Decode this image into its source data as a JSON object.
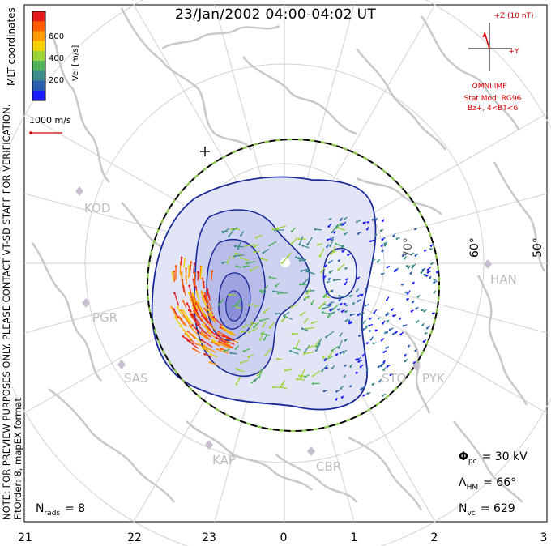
{
  "title": "23/Jan/2002 04:00-04:02 UT",
  "coord_label": "MLT coordinates",
  "preview_note_1": "NOTE: FOR PREVIEW PURPOSES ONLY. PLEASE CONTACT VT-SD STAFF FOR VERIFICATION.",
  "preview_note_2": "FitOrder: 8, mapEX format",
  "colorbar": {
    "label": "Vel [m/s]",
    "ticks": [
      "600",
      "400",
      "200"
    ],
    "colors": [
      "#e41a1c",
      "#ff5a00",
      "#ff9a00",
      "#f5d000",
      "#9bd33a",
      "#4db35a",
      "#3c8c8c",
      "#2a5fb0",
      "#1a1aff"
    ]
  },
  "scale_vector": "1000 m/s",
  "imf": {
    "plus_z": "+Z (10 nT)",
    "plus_y": "+Y",
    "source": "OMNI IMF",
    "stat_mod": "Stat Mod: RG96",
    "condition": "Bz+, 4<BT<6"
  },
  "latitude_labels": [
    "70°",
    "60°",
    "50°"
  ],
  "stations": [
    "KOD",
    "PGR",
    "SAS",
    "KAP",
    "CBR",
    "STO",
    "PYK",
    "HAN"
  ],
  "mlt_labels": [
    "21",
    "22",
    "23",
    "0",
    "1",
    "2",
    "3"
  ],
  "stats": {
    "phi_symbol": "Φ",
    "phi_sub": "pc",
    "phi_value": "= 30 kV",
    "lambda_symbol": "Λ",
    "lambda_sub": "HM",
    "lambda_value": "= 66°",
    "nvc_symbol": "N",
    "nvc_sub": "vc",
    "nvc_value": "= 629",
    "nrads_symbol": "N",
    "nrads_sub": "rads",
    "nrads_value": "= 8"
  },
  "colors": {
    "coast": "#c8c8c8",
    "grid": "#d2d2d2",
    "contour": "#1a2a9a",
    "boundary_green": "#8ed04a",
    "imf_red": "#d40000"
  },
  "icons": [
    "plus-marker-icon",
    "station-marker-icon"
  ]
}
